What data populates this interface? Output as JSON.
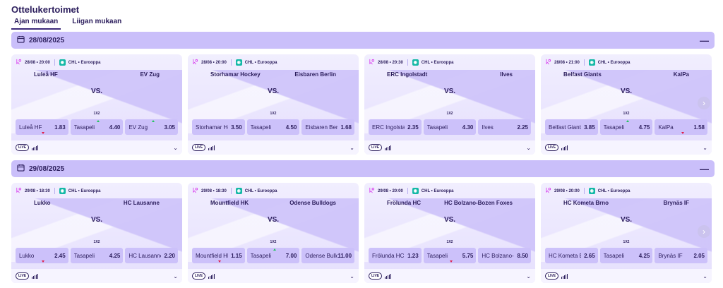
{
  "page": {
    "title": "Ottelukertoimet"
  },
  "tabs": [
    {
      "label": "Ajan mukaan",
      "active": true
    },
    {
      "label": "Liigan mukaan",
      "active": false
    }
  ],
  "colors": {
    "header": "#cabffa",
    "odds": "#ccc1fa",
    "accent": "#2b1d5c",
    "league_icon": "#14b8a6"
  },
  "icons": {
    "calendar": "calendar-icon",
    "collapse": "minus-icon",
    "live": "live-badge",
    "stats": "bar-chart-icon",
    "expand": "chevron-down-icon",
    "next": "chevron-right-icon"
  },
  "sections": [
    {
      "date": "28/08/2025",
      "collapse": "—",
      "next": "›",
      "matches": [
        {
          "time": "28/08 • 20:00",
          "league": "CHL • Eurooppa",
          "home": "Luleå HF",
          "away": "EV Zug",
          "vs": "VS.",
          "market": "1X2",
          "odds": [
            {
              "label": "Luleå HF",
              "value": "1.83",
              "trend": "down"
            },
            {
              "label": "Tasapeli",
              "value": "4.40",
              "trend": "up"
            },
            {
              "label": "EV Zug",
              "value": "3.05",
              "trend": "up"
            }
          ],
          "live": "LIVE",
          "chev": "⌄"
        },
        {
          "time": "28/08 • 20:00",
          "league": "CHL • Eurooppa",
          "home": "Storhamar Hockey",
          "away": "Eisbaren Berlin",
          "vs": "VS.",
          "market": "1X2",
          "odds": [
            {
              "label": "Storhamar Hockey",
              "value": "3.50",
              "trend": ""
            },
            {
              "label": "Tasapeli",
              "value": "4.50",
              "trend": ""
            },
            {
              "label": "Eisbaren Berlin",
              "value": "1.68",
              "trend": ""
            }
          ],
          "live": "LIVE",
          "chev": "⌄"
        },
        {
          "time": "28/08 • 20:30",
          "league": "CHL • Eurooppa",
          "home": "ERC Ingolstadt",
          "away": "Ilves",
          "vs": "VS.",
          "market": "1X2",
          "odds": [
            {
              "label": "ERC Ingolstadt",
              "value": "2.35",
              "trend": ""
            },
            {
              "label": "Tasapeli",
              "value": "4.30",
              "trend": ""
            },
            {
              "label": "Ilves",
              "value": "2.25",
              "trend": ""
            }
          ],
          "live": "LIVE",
          "chev": "⌄"
        },
        {
          "time": "28/08 • 21:00",
          "league": "CHL • Eurooppa",
          "home": "Belfast Giants",
          "away": "KalPa",
          "vs": "VS.",
          "market": "1X2",
          "odds": [
            {
              "label": "Belfast Giants",
              "value": "3.85",
              "trend": ""
            },
            {
              "label": "Tasapeli",
              "value": "4.75",
              "trend": "up"
            },
            {
              "label": "KalPa",
              "value": "1.58",
              "trend": "down"
            }
          ],
          "live": "LIVE",
          "chev": "⌄"
        }
      ]
    },
    {
      "date": "29/08/2025",
      "collapse": "—",
      "next": "›",
      "matches": [
        {
          "time": "29/08 • 18:30",
          "league": "CHL • Eurooppa",
          "home": "Lukko",
          "away": "HC Lausanne",
          "vs": "VS.",
          "market": "1X2",
          "odds": [
            {
              "label": "Lukko",
              "value": "2.45",
              "trend": "down"
            },
            {
              "label": "Tasapeli",
              "value": "4.25",
              "trend": ""
            },
            {
              "label": "HC Lausanne",
              "value": "2.20",
              "trend": ""
            }
          ],
          "live": "LIVE",
          "chev": "⌄"
        },
        {
          "time": "29/08 • 18:30",
          "league": "CHL • Eurooppa",
          "home": "Mountfield HK",
          "away": "Odense Bulldogs",
          "vs": "VS.",
          "market": "1X2",
          "odds": [
            {
              "label": "Mountfield HK",
              "value": "1.15",
              "trend": "down"
            },
            {
              "label": "Tasapeli",
              "value": "7.00",
              "trend": "up"
            },
            {
              "label": "Odense Bulldogs",
              "value": "11.00",
              "trend": ""
            }
          ],
          "live": "LIVE",
          "chev": "⌄"
        },
        {
          "time": "29/08 • 20:00",
          "league": "CHL • Eurooppa",
          "home": "Frölunda HC",
          "away": "HC Bolzano-Bozen Foxes",
          "vs": "VS.",
          "market": "1X2",
          "odds": [
            {
              "label": "Frölunda HC",
              "value": "1.23",
              "trend": ""
            },
            {
              "label": "Tasapeli",
              "value": "5.75",
              "trend": "down"
            },
            {
              "label": "HC Bolzano-Bozen Foxes",
              "value": "8.50",
              "trend": ""
            }
          ],
          "live": "LIVE",
          "chev": "⌄"
        },
        {
          "time": "29/08 • 20:00",
          "league": "CHL • Eurooppa",
          "home": "HC Kometa Brno",
          "away": "Brynäs IF",
          "vs": "VS.",
          "market": "1X2",
          "odds": [
            {
              "label": "HC Kometa Brno",
              "value": "2.65",
              "trend": ""
            },
            {
              "label": "Tasapeli",
              "value": "4.25",
              "trend": ""
            },
            {
              "label": "Brynäs IF",
              "value": "2.05",
              "trend": ""
            }
          ],
          "live": "LIVE",
          "chev": "⌄"
        }
      ]
    }
  ]
}
